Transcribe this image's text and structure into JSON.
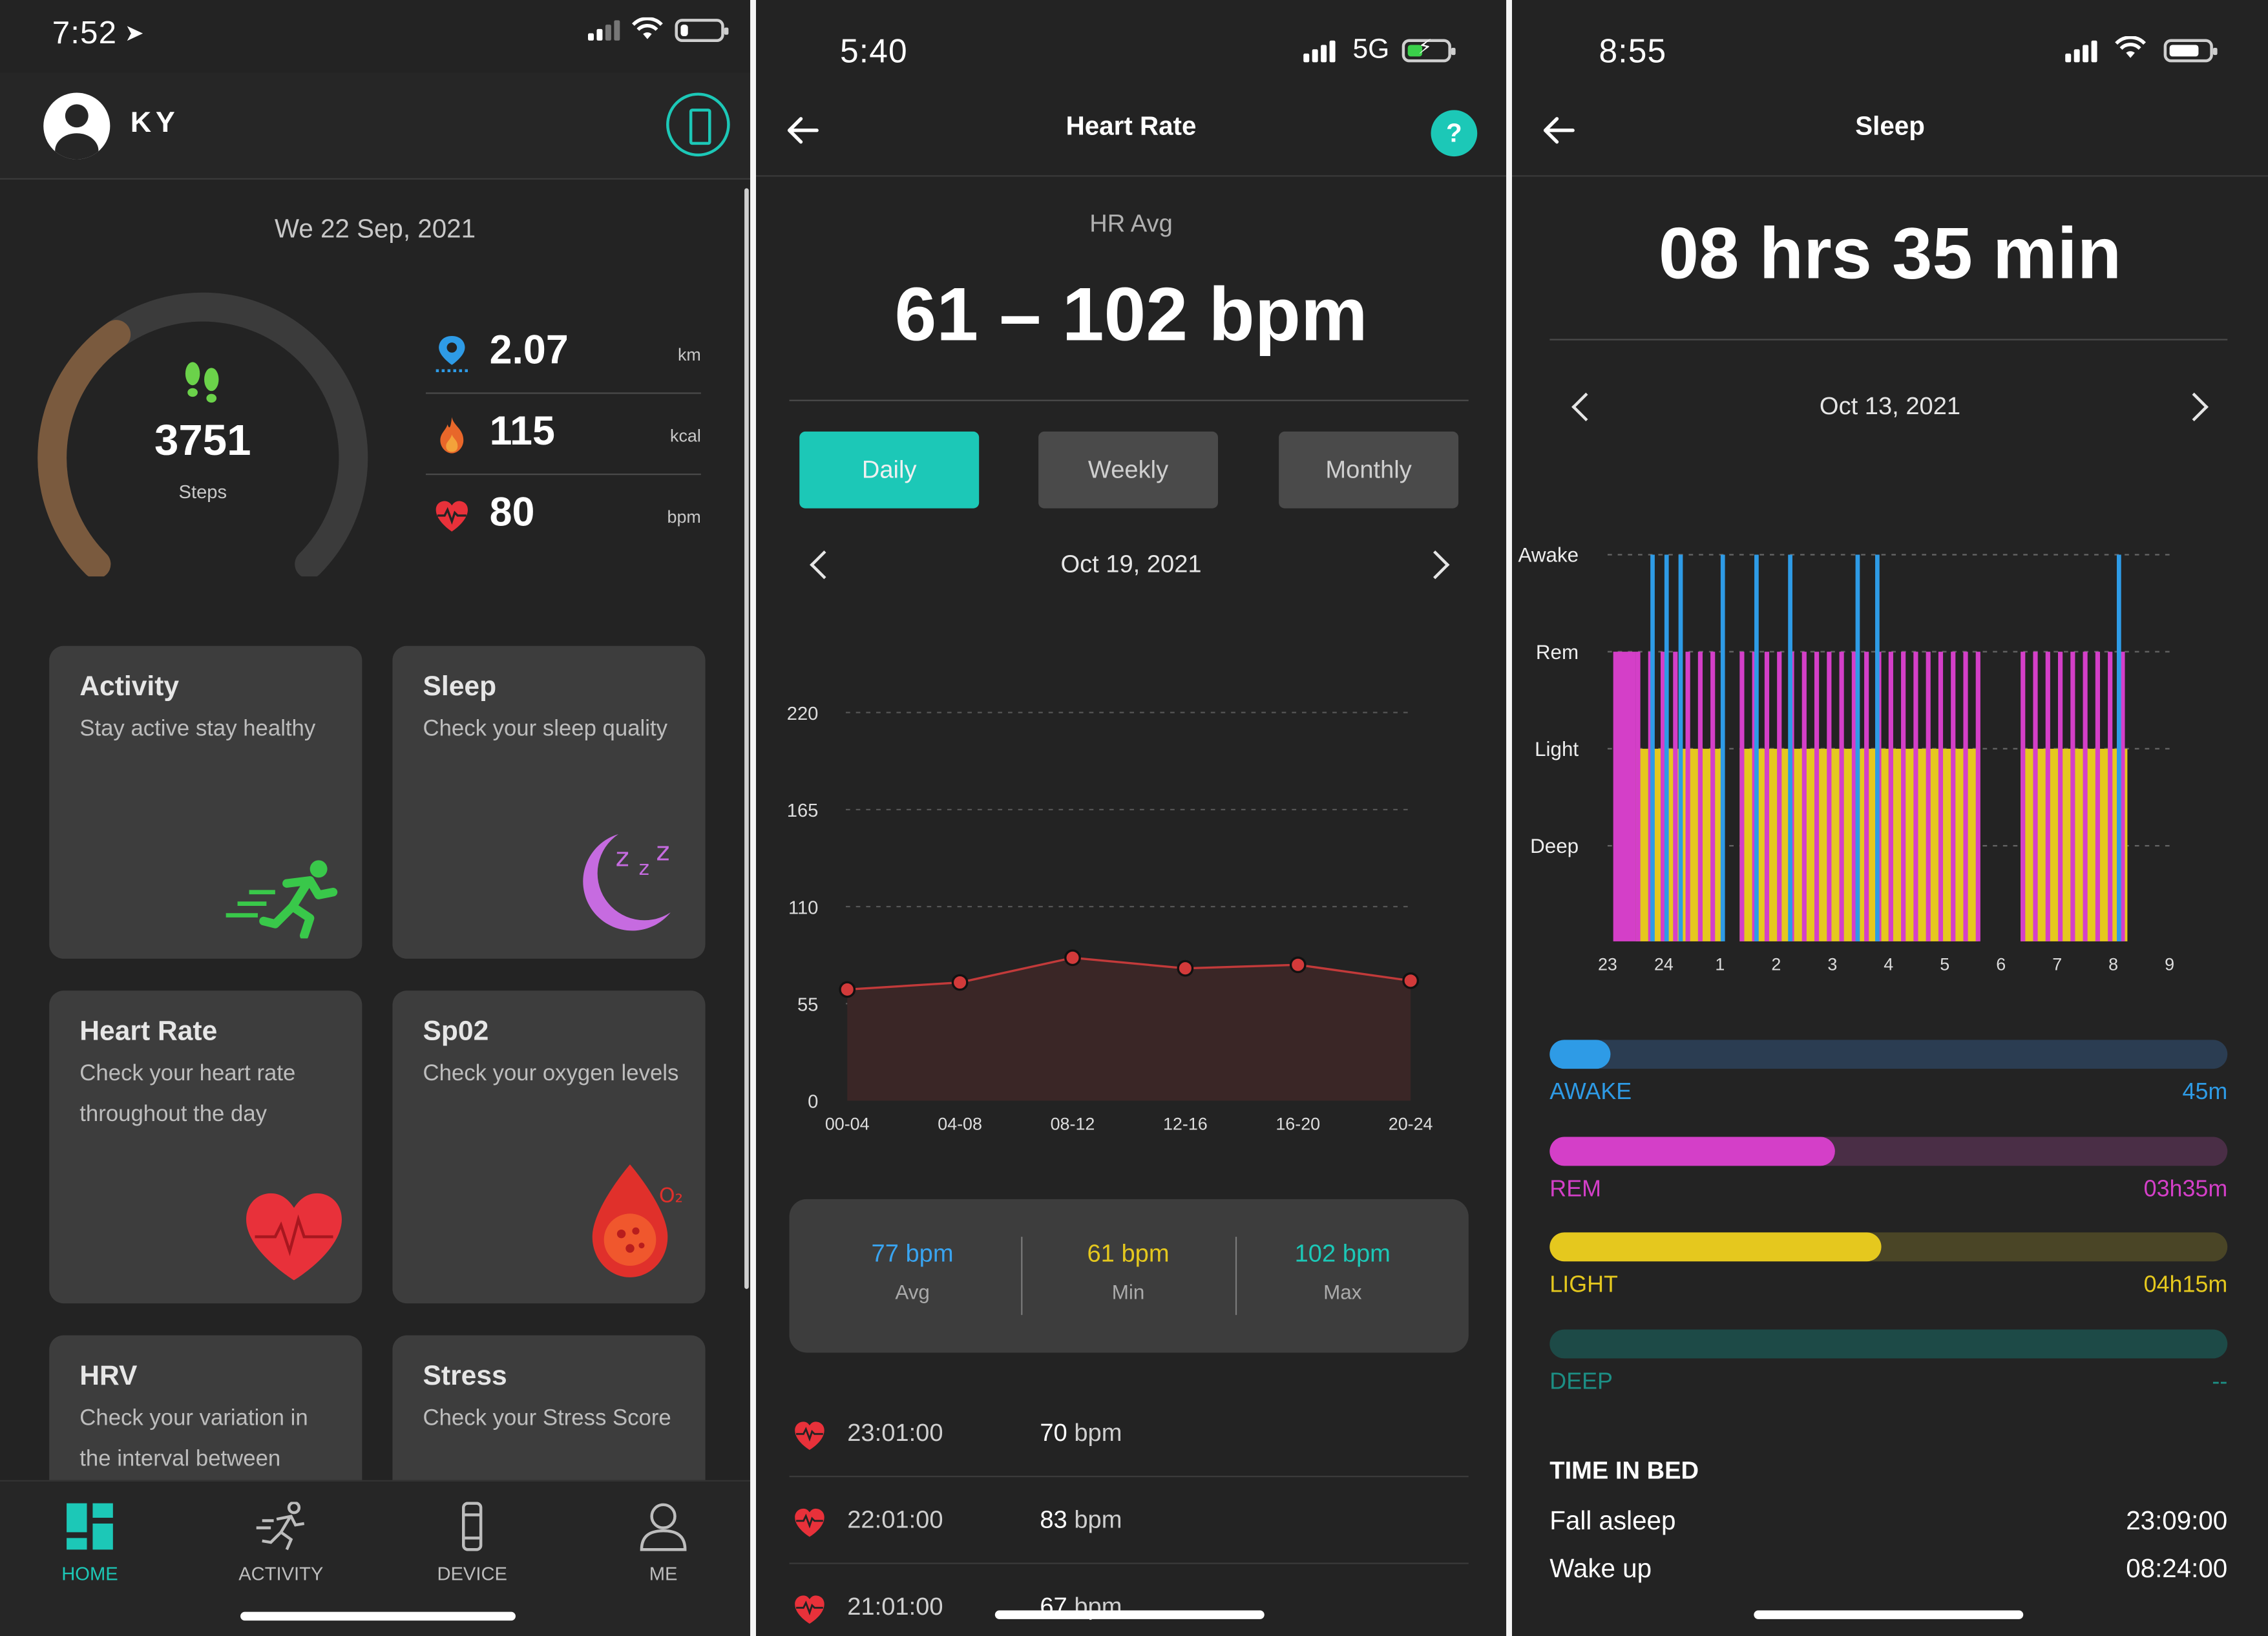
{
  "colors": {
    "accent": "#1cc8b7",
    "awake": "#2e9be6",
    "rem": "#d43fc8",
    "light": "#e5c81e",
    "deep": "#1d5f5a",
    "heart": "#e8313a"
  },
  "home": {
    "status_time": "7:52",
    "user_name": "KY",
    "date": "We 22 Sep, 2021",
    "steps": {
      "value": "3751",
      "label": "Steps",
      "progress": 0.37
    },
    "metrics": [
      {
        "icon": "location-pin-icon",
        "value": "2.07",
        "unit": "km"
      },
      {
        "icon": "flame-icon",
        "value": "115",
        "unit": "kcal"
      },
      {
        "icon": "heart-pulse-icon",
        "value": "80",
        "unit": "bpm"
      }
    ],
    "cards": [
      {
        "title": "Activity",
        "desc": "Stay active stay healthy"
      },
      {
        "title": "Sleep",
        "desc": "Check your sleep quality"
      },
      {
        "title": "Heart Rate",
        "desc": "Check your heart rate throughout the day"
      },
      {
        "title": "Sp02",
        "desc": "Check your oxygen levels"
      },
      {
        "title": "HRV",
        "desc": "Check your variation in the interval between"
      },
      {
        "title": "Stress",
        "desc": "Check your Stress Score"
      }
    ],
    "tabs": [
      "HOME",
      "ACTIVITY",
      "DEVICE",
      "ME"
    ]
  },
  "heart_rate": {
    "status_time": "5:40",
    "network": "5G",
    "title": "Heart Rate",
    "help": "?",
    "avg_label": "HR Avg",
    "range": "61 – 102 bpm",
    "segments": [
      "Daily",
      "Weekly",
      "Monthly"
    ],
    "date": "Oct 19, 2021",
    "stats": [
      {
        "value": "77 bpm",
        "label": "Avg"
      },
      {
        "value": "61 bpm",
        "label": "Min"
      },
      {
        "value": "102 bpm",
        "label": "Max"
      }
    ],
    "log": [
      {
        "time": "23:01:00",
        "value": "70",
        "unit": "bpm"
      },
      {
        "time": "22:01:00",
        "value": "83",
        "unit": "bpm"
      },
      {
        "time": "21:01:00",
        "value": "67",
        "unit": "bpm"
      }
    ]
  },
  "sleep": {
    "status_time": "8:55",
    "title": "Sleep",
    "total": "08 hrs 35 min",
    "date": "Oct 13, 2021",
    "stages": [
      {
        "name": "AWAKE",
        "value": "45m",
        "fraction": 0.09
      },
      {
        "name": "REM",
        "value": "03h35m",
        "fraction": 0.42
      },
      {
        "name": "LIGHT",
        "value": "04h15m",
        "fraction": 0.49
      },
      {
        "name": "DEEP",
        "value": "--",
        "fraction": 0
      }
    ],
    "time_in_bed_label": "TIME IN BED",
    "fall_asleep_label": "Fall asleep",
    "fall_asleep": "23:09:00",
    "wake_up_label": "Wake up",
    "wake_up": "08:24:00"
  },
  "chart_data": [
    {
      "type": "area",
      "categories": [
        "00-04",
        "04-08",
        "08-12",
        "12-16",
        "16-20",
        "20-24"
      ],
      "values": [
        63,
        67,
        81,
        75,
        77,
        68
      ],
      "yticks": [
        0,
        55,
        110,
        165,
        220
      ],
      "ylim": [
        0,
        220
      ],
      "grid": true
    },
    {
      "type": "bar",
      "categories": [
        "Awake",
        "Rem",
        "Light",
        "Deep"
      ],
      "xticks": [
        "23",
        "24",
        "1",
        "2",
        "3",
        "4",
        "5",
        "6",
        "7",
        "8",
        "9"
      ],
      "xlim": [
        23,
        33
      ],
      "awake_times": [
        23.8,
        24.05,
        24.3,
        25.05,
        25.65,
        26.25,
        27.45,
        27.8,
        32.1
      ],
      "segments": [
        {
          "from": 23.1,
          "to": 23.5,
          "stage": "Rem"
        },
        {
          "from": 23.5,
          "to": 25.05,
          "stage": "Light/Rem"
        },
        {
          "from": 25.35,
          "to": 28.0,
          "stage": "Light/Rem"
        },
        {
          "from": 28.0,
          "to": 29.6,
          "stage": "Light/Rem"
        },
        {
          "from": 30.35,
          "to": 32.25,
          "stage": "Light/Rem"
        }
      ],
      "grid": true
    }
  ]
}
